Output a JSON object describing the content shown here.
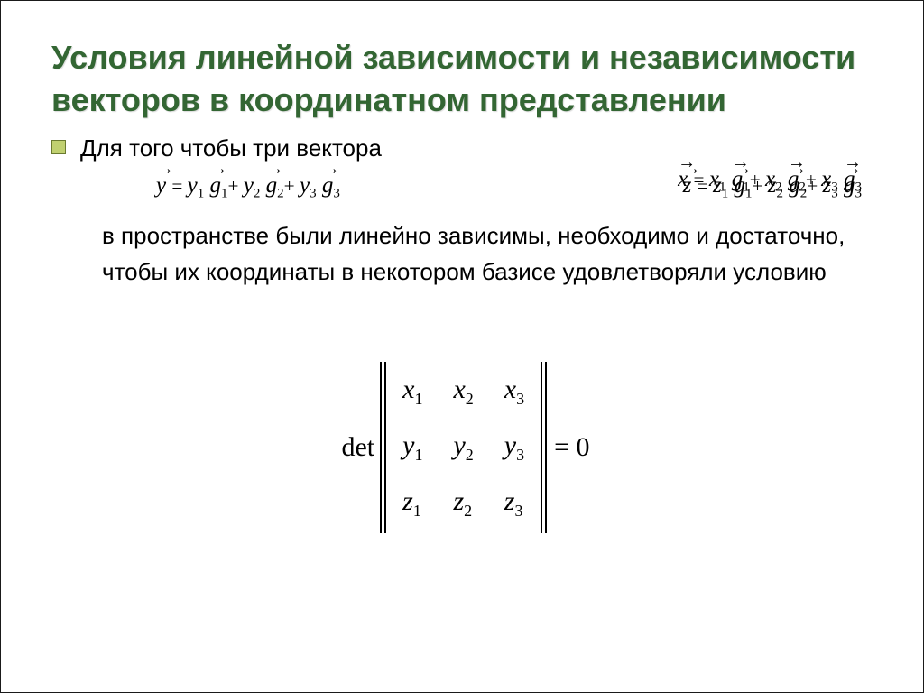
{
  "colors": {
    "title": "#336633",
    "bullet_fill": "#c0d070",
    "bullet_border": "#6a7a30",
    "text": "#000000",
    "background": "#ffffff"
  },
  "fonts": {
    "body_family": "Arial",
    "body_size_pt": 20,
    "title_size_pt": 28,
    "math_family": "Times New Roman",
    "math_size_pt": 22
  },
  "title": "Условия линейной зависимости и независимости векторов в координатном представлении",
  "lead": "Для того чтобы три вектора",
  "vectors": {
    "x": {
      "var": "x",
      "c1": "x",
      "s1": "1",
      "c2": "x",
      "s2": "2",
      "c3": "x",
      "s3": "3",
      "basis": "g"
    },
    "y": {
      "var": "y",
      "c1": "y",
      "s1": "1",
      "c2": "y",
      "s2": "2",
      "c3": "y",
      "s3": "3",
      "basis": "g"
    },
    "z": {
      "var": "z",
      "c1": "z",
      "s1": "1",
      "c2": "z",
      "s2": "2",
      "c3": "z",
      "s3": "3",
      "basis": "g"
    }
  },
  "paragraph": "в пространстве были линейно зависимы, необходимо и достаточно, чтобы их координаты в некотором базисе удовлетворяли условию",
  "determinant": {
    "label": "det",
    "rows": [
      [
        {
          "v": "x",
          "s": "1"
        },
        {
          "v": "x",
          "s": "2"
        },
        {
          "v": "x",
          "s": "3"
        }
      ],
      [
        {
          "v": "y",
          "s": "1"
        },
        {
          "v": "y",
          "s": "2"
        },
        {
          "v": "y",
          "s": "3"
        }
      ],
      [
        {
          "v": "z",
          "s": "1"
        },
        {
          "v": "z",
          "s": "2"
        },
        {
          "v": "z",
          "s": "3"
        }
      ]
    ],
    "rhs": "= 0"
  }
}
